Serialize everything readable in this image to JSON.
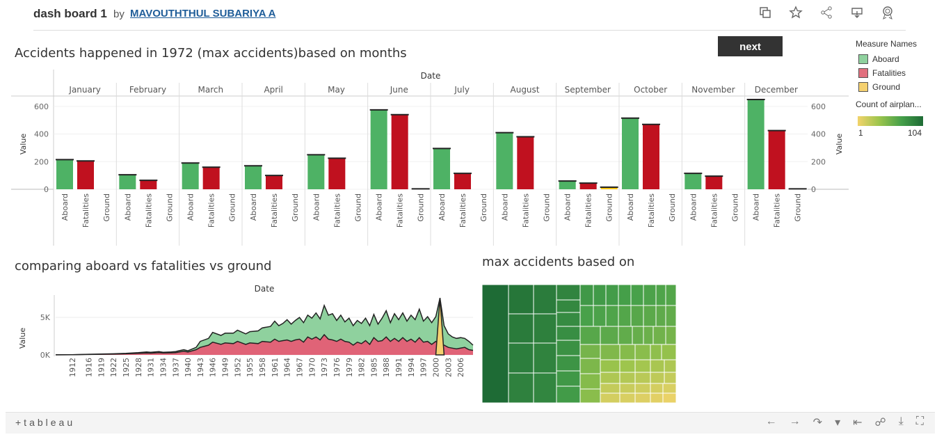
{
  "header": {
    "title": "dash board 1",
    "by": "by",
    "author": "MAVOUTHTHUL SUBARIYA A",
    "icons": [
      "copy-icon",
      "star-icon",
      "share-icon",
      "download-icon",
      "badge-icon"
    ]
  },
  "next_button": "next",
  "bar_section": {
    "title": "Accidents happened in 1972 (max accidents)based on months",
    "date_header": "Date",
    "value_label": "Value"
  },
  "area_section": {
    "title": "comparing aboard vs fatalities vs ground",
    "date_header": "Date",
    "value_label": "Value"
  },
  "treemap_section": {
    "title": "max accidents based on"
  },
  "legend": {
    "measure_title": "Measure Names",
    "items": [
      {
        "label": "Aboard",
        "color": "#8fd19e"
      },
      {
        "label": "Fatalities",
        "color": "#e1707e"
      },
      {
        "label": "Ground",
        "color": "#f5d170"
      }
    ],
    "count_title": "Count of airplan...",
    "count_min": "1",
    "count_max": "104"
  },
  "footer": {
    "logo": "+tableau",
    "icons": [
      "undo-icon",
      "redo-icon",
      "revert-icon",
      "revert-menu-icon",
      "reset-icon",
      "share-icon",
      "download-icon",
      "fullscreen-icon"
    ]
  },
  "chart_data": [
    {
      "type": "bar",
      "title": "Accidents happened in 1972 (max accidents)based on months",
      "xlabel": "Date",
      "ylabel": "Value",
      "ylim": [
        0,
        680
      ],
      "yticks": [
        0,
        200,
        400,
        600
      ],
      "categories": [
        "January",
        "February",
        "March",
        "April",
        "May",
        "June",
        "July",
        "August",
        "September",
        "October",
        "November",
        "December"
      ],
      "series": [
        {
          "name": "Aboard",
          "color": "#4eb265",
          "values": [
            215,
            105,
            190,
            170,
            250,
            575,
            295,
            410,
            60,
            515,
            115,
            650
          ]
        },
        {
          "name": "Fatalities",
          "color": "#c0111f",
          "values": [
            205,
            65,
            160,
            100,
            225,
            540,
            115,
            380,
            45,
            470,
            95,
            425
          ]
        },
        {
          "name": "Ground",
          "color": "#f5c518",
          "values": [
            0,
            0,
            0,
            0,
            0,
            3,
            0,
            0,
            15,
            0,
            0,
            3
          ]
        }
      ],
      "grid": true
    },
    {
      "type": "area",
      "title": "comparing aboard vs fatalities vs ground",
      "xlabel": "Date",
      "ylabel": "Value",
      "ylim": [
        0,
        7800
      ],
      "yticks": [
        {
          "v": 0,
          "label": "0K"
        },
        {
          "v": 5000,
          "label": "5K"
        }
      ],
      "tick_labels": [
        "1912",
        "1916",
        "1919",
        "1922",
        "1925",
        "1928",
        "1931",
        "1934",
        "1937",
        "1940",
        "1943",
        "1946",
        "1949",
        "1952",
        "1955",
        "1958",
        "1961",
        "1964",
        "1967",
        "1970",
        "1973",
        "1976",
        "1979",
        "1982",
        "1985",
        "1988",
        "1991",
        "1994",
        "1997",
        "2000",
        "2003",
        "2006"
      ],
      "x": [
        1908,
        1912,
        1916,
        1919,
        1922,
        1925,
        1928,
        1930,
        1931,
        1933,
        1934,
        1936,
        1937,
        1939,
        1940,
        1942,
        1943,
        1945,
        1946,
        1948,
        1949,
        1951,
        1952,
        1954,
        1955,
        1957,
        1958,
        1960,
        1961,
        1962,
        1963,
        1964,
        1965,
        1966,
        1967,
        1968,
        1969,
        1970,
        1971,
        1972,
        1973,
        1974,
        1975,
        1976,
        1977,
        1978,
        1979,
        1980,
        1981,
        1982,
        1983,
        1984,
        1985,
        1986,
        1987,
        1988,
        1989,
        1990,
        1991,
        1992,
        1993,
        1994,
        1995,
        1996,
        1997,
        1998,
        1999,
        2000,
        2001,
        2002,
        2003,
        2004,
        2005,
        2006,
        2007,
        2008,
        2009
      ],
      "series": [
        {
          "name": "Aboard",
          "color": "#8fd19e",
          "values": [
            10,
            30,
            80,
            120,
            150,
            200,
            300,
            400,
            350,
            450,
            350,
            400,
            450,
            700,
            550,
            1000,
            1800,
            2200,
            3000,
            2600,
            2900,
            2900,
            3300,
            2800,
            3100,
            3200,
            3600,
            3800,
            4500,
            3900,
            4200,
            4700,
            4100,
            4600,
            5000,
            4300,
            5300,
            4900,
            5600,
            4800,
            6600,
            5300,
            5500,
            4600,
            5300,
            4400,
            4900,
            3900,
            4600,
            4200,
            4900,
            3900,
            5400,
            4100,
            4900,
            5900,
            4300,
            5500,
            4700,
            5600,
            4500,
            5300,
            4700,
            6100,
            4500,
            5100,
            4300,
            5100,
            7600,
            3900,
            2800,
            2400,
            2200,
            2300,
            2200,
            1800,
            1300
          ]
        },
        {
          "name": "Fatalities",
          "color": "#e06377",
          "values": [
            5,
            20,
            60,
            80,
            100,
            150,
            200,
            250,
            230,
            300,
            250,
            280,
            300,
            500,
            380,
            700,
            1000,
            1300,
            1700,
            1400,
            1600,
            1500,
            1800,
            1400,
            1600,
            1500,
            1800,
            1700,
            2100,
            1800,
            1900,
            2000,
            1800,
            2000,
            2100,
            1700,
            2400,
            2100,
            2400,
            2000,
            2700,
            2100,
            2000,
            1800,
            2100,
            1800,
            1700,
            1300,
            1700,
            1500,
            1900,
            1400,
            2300,
            1800,
            1900,
            2400,
            1800,
            2200,
            1800,
            2300,
            1800,
            2100,
            1700,
            2300,
            1700,
            1800,
            1400,
            1800,
            1300,
            1300,
            1000,
            900,
            800,
            900,
            1000,
            700,
            600
          ]
        },
        {
          "name": "Ground",
          "color": "#f5d170",
          "values": [
            0,
            0,
            0,
            0,
            0,
            0,
            0,
            0,
            0,
            0,
            0,
            0,
            0,
            0,
            0,
            0,
            0,
            0,
            0,
            0,
            0,
            0,
            0,
            0,
            0,
            0,
            0,
            0,
            0,
            0,
            0,
            0,
            0,
            0,
            0,
            0,
            0,
            0,
            0,
            0,
            0,
            0,
            0,
            0,
            0,
            0,
            0,
            0,
            0,
            0,
            0,
            0,
            0,
            0,
            0,
            0,
            0,
            0,
            0,
            0,
            0,
            0,
            0,
            0,
            0,
            0,
            0,
            0,
            7600,
            0,
            0,
            0,
            0,
            0,
            0,
            0,
            0
          ]
        }
      ]
    },
    {
      "type": "heatmap",
      "subtype": "treemap",
      "title": "max accidents based on",
      "color_scale": [
        "#f2d36b",
        "#9bc44c",
        "#46a04a",
        "#1e6b35"
      ]
    }
  ]
}
